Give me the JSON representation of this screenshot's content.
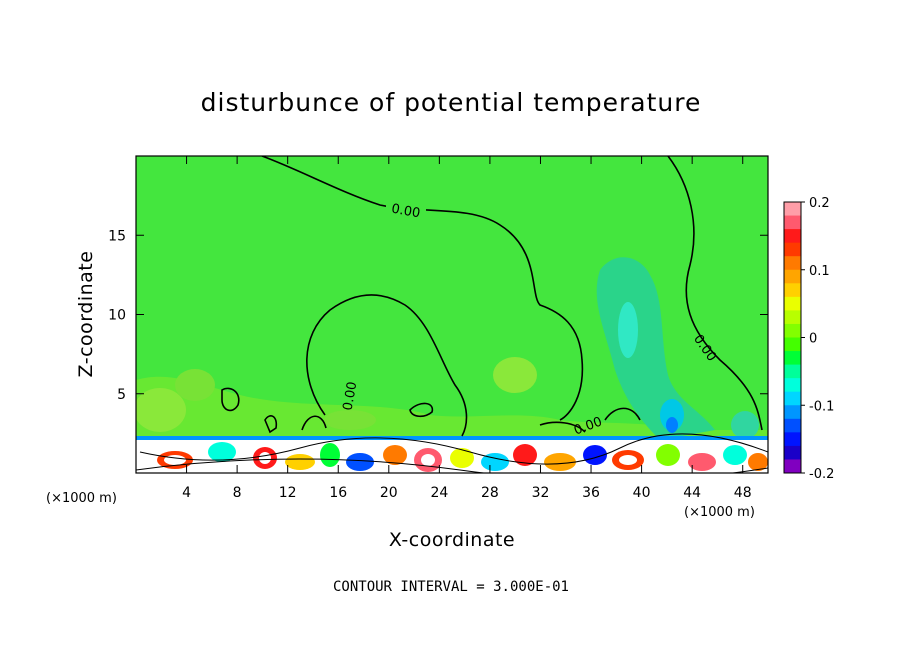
{
  "chart_data": {
    "type": "heatmap",
    "title": "disturbunce of potential temperature",
    "xlabel": "X-coordinate",
    "ylabel": "Z-coordinate",
    "x_unit": "(×1000 m)",
    "y_unit": "(×1000 m)",
    "xlim": [
      0,
      50
    ],
    "ylim": [
      0,
      20
    ],
    "x_ticks": [
      4,
      8,
      12,
      16,
      20,
      24,
      28,
      32,
      36,
      40,
      44,
      48
    ],
    "y_ticks": [
      5,
      10,
      15
    ],
    "colorbar": {
      "range": [
        -0.2,
        0.2
      ],
      "tick_labels": [
        "0.2",
        "0.1",
        "0",
        "-0.1",
        "-0.2"
      ],
      "tick_values": [
        0.2,
        0.1,
        0,
        -0.1,
        -0.2
      ],
      "colors": [
        "#ff9ea8",
        "#ff5a6e",
        "#ff1a1a",
        "#ff3a00",
        "#ff7a00",
        "#ffa500",
        "#ffd000",
        "#eaff00",
        "#b8ff00",
        "#82ff00",
        "#44ff00",
        "#00ff36",
        "#00ff9a",
        "#00ffdc",
        "#00d6ff",
        "#0096ff",
        "#0050ff",
        "#0014ff",
        "#1a00c8",
        "#8000c0"
      ]
    },
    "contour_label": "0.00",
    "contour_interval_text": "CONTOUR INTERVAL = 3.000E-01",
    "background_value": 0.0
  }
}
